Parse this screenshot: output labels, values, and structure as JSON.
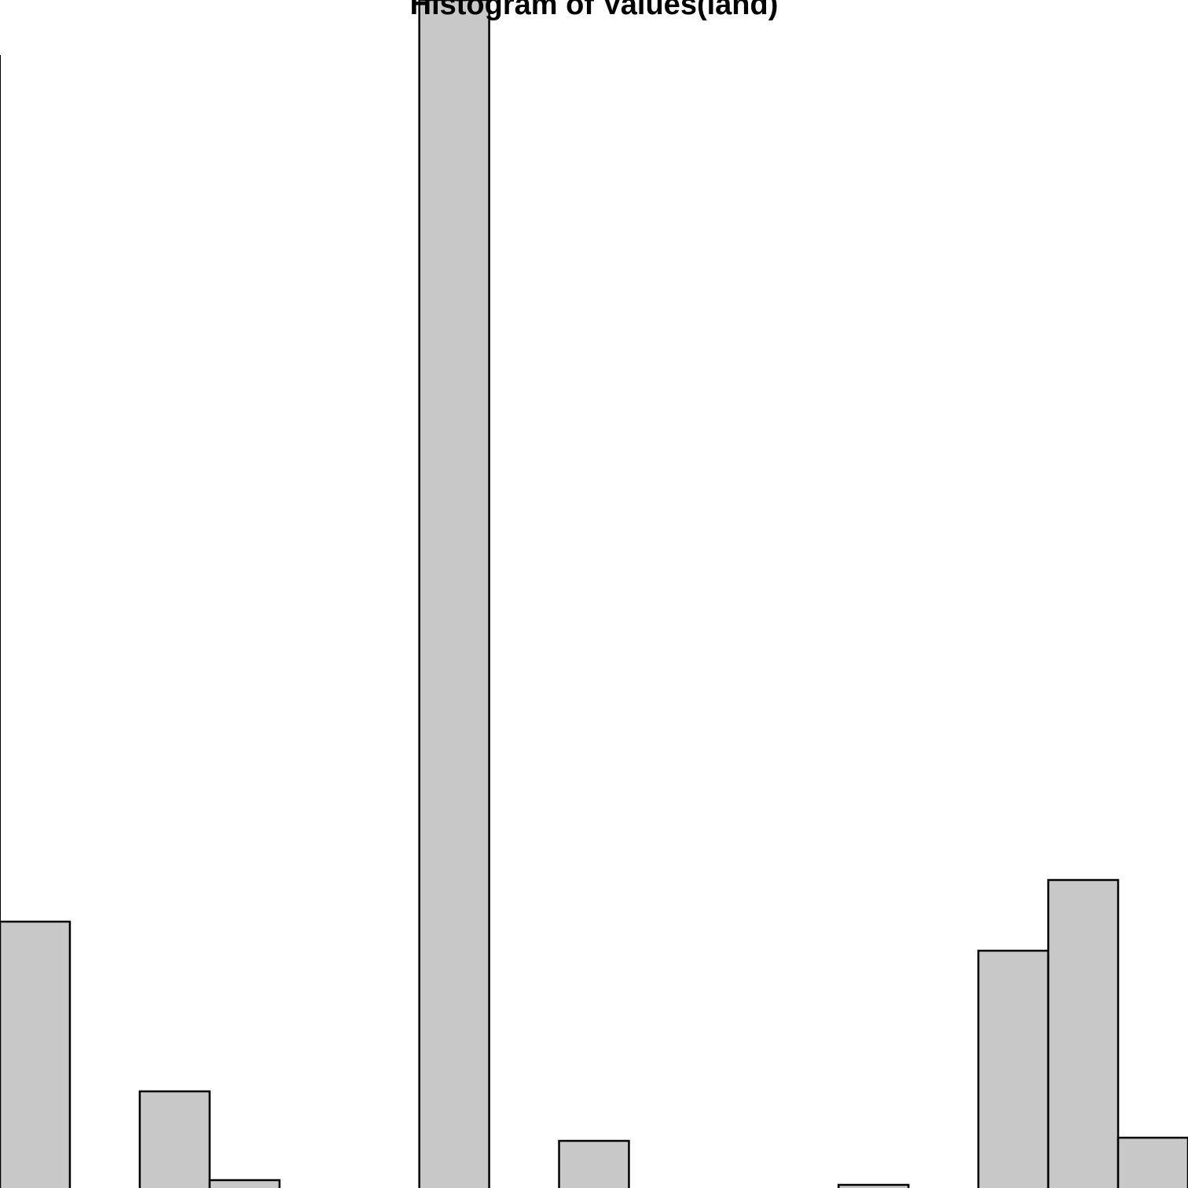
{
  "chart_data": {
    "type": "bar",
    "title": "Histogram of Values(land)",
    "xlabel": "",
    "ylabel": "",
    "ylim": [
      0,
      1512
    ],
    "bins": [
      {
        "start": 0,
        "end": 1,
        "value": 339
      },
      {
        "start": 1,
        "end": 2,
        "value": 0
      },
      {
        "start": 2,
        "end": 3,
        "value": 123
      },
      {
        "start": 3,
        "end": 4,
        "value": 10
      },
      {
        "start": 4,
        "end": 5,
        "value": 0
      },
      {
        "start": 6,
        "end": 7,
        "value": 1512
      },
      {
        "start": 7,
        "end": 8,
        "value": 0
      },
      {
        "start": 8,
        "end": 9,
        "value": 60
      },
      {
        "start": 9,
        "end": 10,
        "value": 0
      },
      {
        "start": 10,
        "end": 11,
        "value": 0
      },
      {
        "start": 11,
        "end": 12,
        "value": 0
      },
      {
        "start": 12,
        "end": 13,
        "value": 4
      },
      {
        "start": 13,
        "end": 14,
        "value": 0
      },
      {
        "start": 14,
        "end": 15,
        "value": 302
      },
      {
        "start": 15,
        "end": 16,
        "value": 392
      },
      {
        "start": 16,
        "end": 17,
        "value": 64
      }
    ],
    "grid": false,
    "colors": {
      "bar_fill": "#c8c8c8",
      "bar_stroke": "#000000",
      "background": "#ffffff"
    }
  }
}
